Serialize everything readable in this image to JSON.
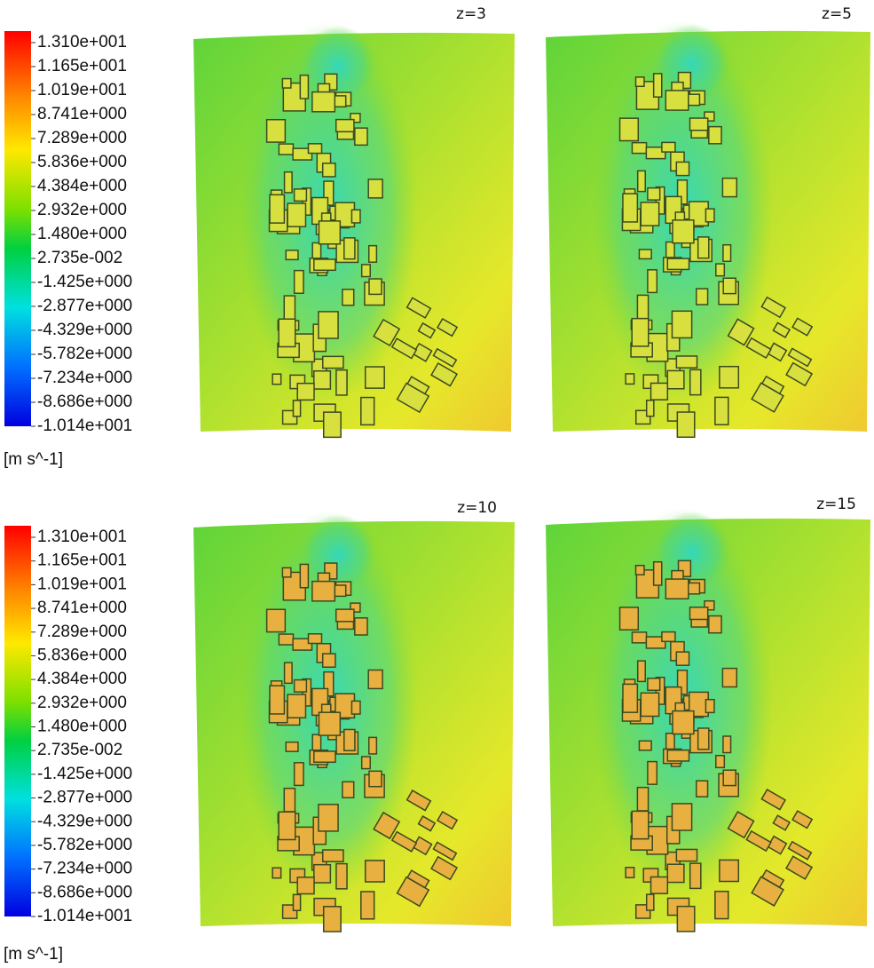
{
  "colorbars": [
    {
      "ticks": [
        "1.310e+001",
        "1.165e+001",
        "1.019e+001",
        "8.741e+000",
        "7.289e+000",
        "5.836e+000",
        "4.384e+000",
        "2.932e+000",
        "1.480e+000",
        "2.735e-002",
        "-1.425e+000",
        "-2.877e+000",
        "-4.329e+000",
        "-5.782e+000",
        "-7.234e+000",
        "-8.686e+000",
        "-1.014e+001"
      ],
      "unit": "[m s^-1]"
    },
    {
      "ticks": [
        "1.310e+001",
        "1.165e+001",
        "1.019e+001",
        "8.741e+000",
        "7.289e+000",
        "5.836e+000",
        "4.384e+000",
        "2.932e+000",
        "1.480e+000",
        "2.735e-002",
        "-1.425e+000",
        "-2.877e+000",
        "-4.329e+000",
        "-5.782e+000",
        "-7.234e+000",
        "-8.686e+000",
        "-1.014e+001"
      ],
      "unit": "[m s^-1]"
    }
  ],
  "panels": [
    {
      "label": "z=3"
    },
    {
      "label": "z=5"
    },
    {
      "label": "z=10"
    },
    {
      "label": "z=15"
    }
  ]
}
